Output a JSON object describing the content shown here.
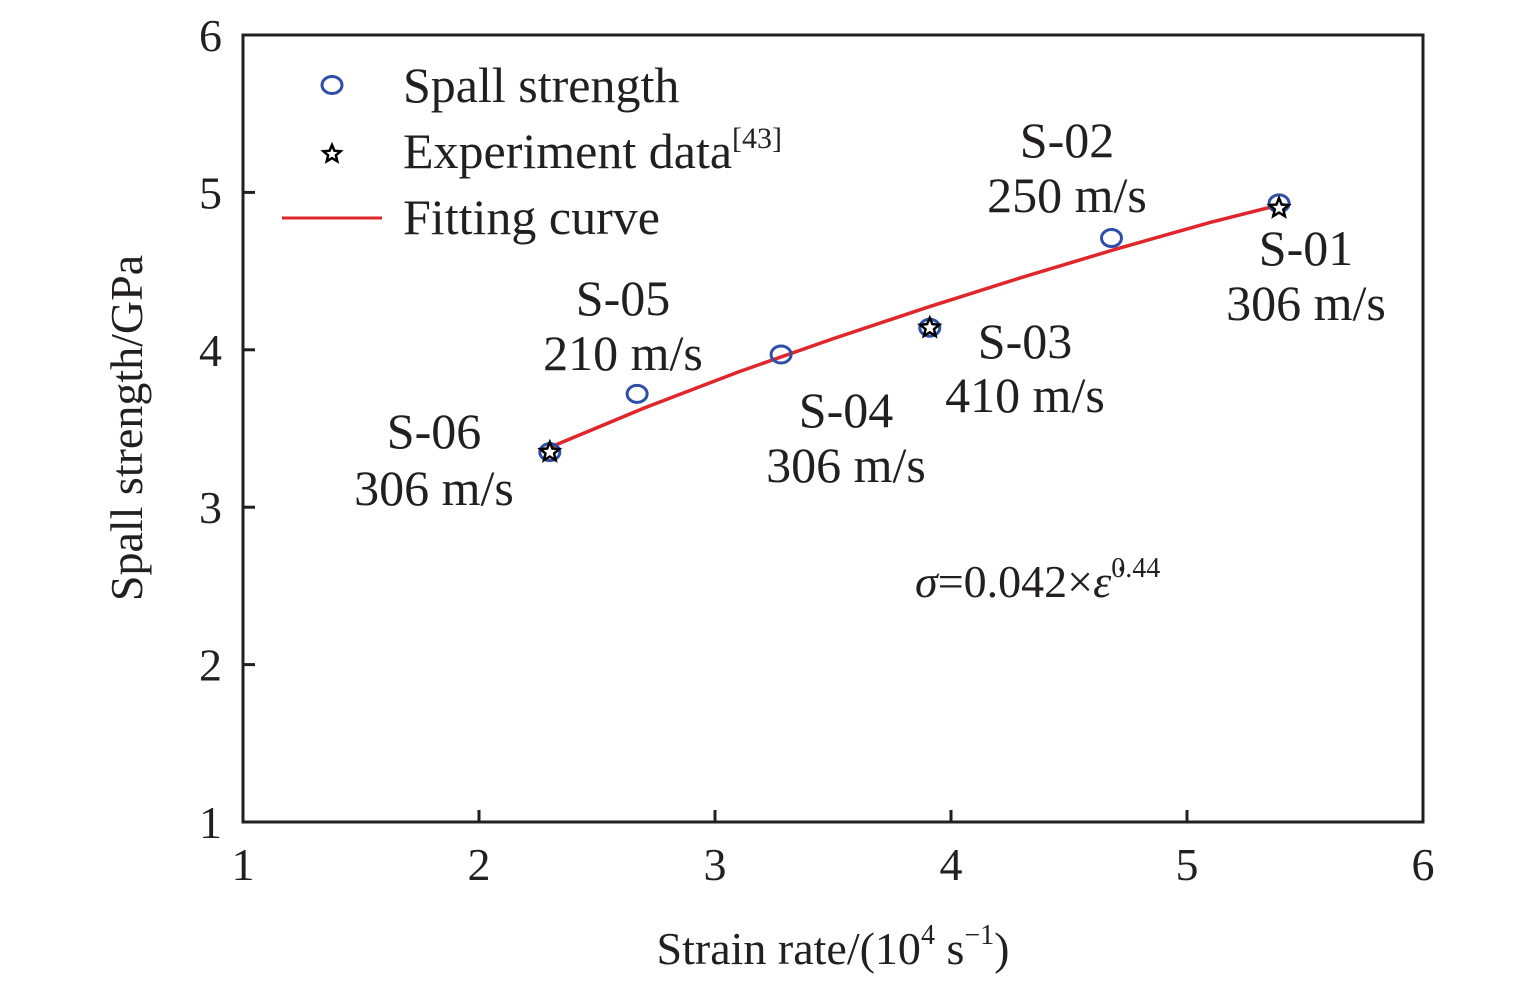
{
  "chart_data": {
    "type": "scatter",
    "title": "",
    "xlabel": "Strain rate/(10",
    "xlabel_sup": "4",
    "xlabel_mid": " s",
    "xlabel_sup2": "−1",
    "xlabel_end": ")",
    "ylabel": "Spall strength/GPa",
    "xlim": [
      1,
      6
    ],
    "ylim": [
      1,
      6
    ],
    "xticks": [
      "1",
      "2",
      "3",
      "4",
      "5",
      "6"
    ],
    "yticks": [
      "1",
      "2",
      "3",
      "4",
      "5",
      "6"
    ],
    "grid": false,
    "legend_position": "top-left",
    "colors": {
      "spall": "#2e4fa8",
      "experiment": "#000000",
      "fit": "#e0262b",
      "axis": "#231f20"
    },
    "legend": [
      {
        "label": "Spall strength",
        "marker": "circle"
      },
      {
        "label": "Experiment data",
        "sup": "[43]",
        "marker": "star"
      },
      {
        "label": "Fitting curve",
        "marker": "line"
      }
    ],
    "series": [
      {
        "name": "Spall strength",
        "marker": "circle",
        "x": [
          2.3,
          2.67,
          3.28,
          3.91,
          4.68,
          5.39
        ],
        "y": [
          3.35,
          3.72,
          3.97,
          4.14,
          4.71,
          4.93
        ]
      },
      {
        "name": "Experiment data",
        "marker": "star",
        "x": [
          2.3,
          3.91,
          5.39
        ],
        "y": [
          3.35,
          4.14,
          4.9
        ]
      },
      {
        "name": "Fitting curve",
        "marker": "line",
        "x": [
          2.3,
          2.7,
          3.1,
          3.5,
          3.9,
          4.3,
          4.7,
          5.1,
          5.39
        ],
        "y": [
          3.38,
          3.63,
          3.86,
          4.07,
          4.27,
          4.46,
          4.64,
          4.81,
          4.92
        ]
      }
    ],
    "annotations": [
      {
        "id": "S-06",
        "speed": "306 m/s"
      },
      {
        "id": "S-05",
        "speed": "210 m/s"
      },
      {
        "id": "S-04",
        "speed": "306 m/s"
      },
      {
        "id": "S-03",
        "speed": "410 m/s"
      },
      {
        "id": "S-02",
        "speed": "250 m/s"
      },
      {
        "id": "S-01",
        "speed": "306 m/s"
      }
    ],
    "equation": {
      "lhs": "σ",
      "mid": "=0.042×",
      "var": "ε̇",
      "exp": "0.44"
    }
  }
}
